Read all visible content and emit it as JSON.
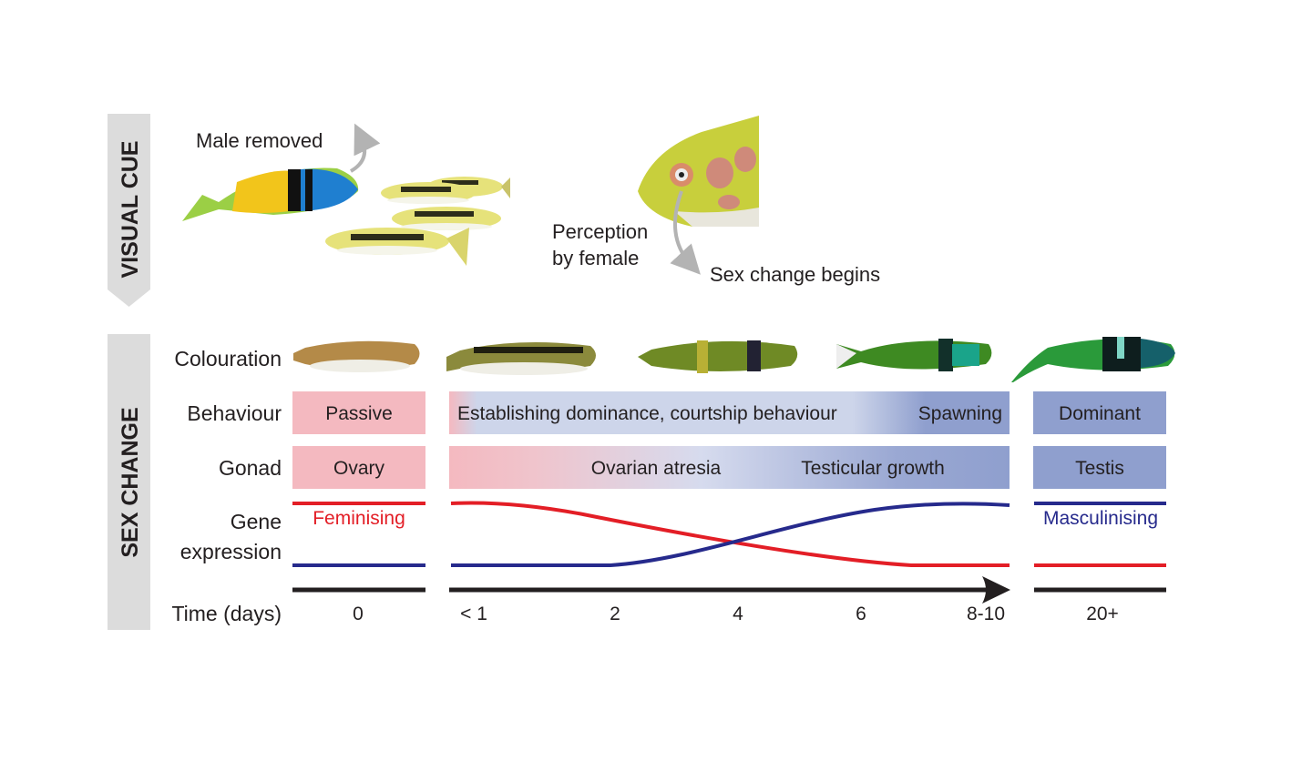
{
  "visual_cue": {
    "band_label": "VISUAL CUE",
    "male_removed": "Male removed",
    "perception_line1": "Perception",
    "perception_line2": "by female",
    "sex_change_begins": "Sex change begins"
  },
  "sex_change": {
    "band_label": "SEX CHANGE",
    "rows": {
      "colouration": "Colouration",
      "behaviour": "Behaviour",
      "gonad": "Gonad",
      "gene_line1": "Gene",
      "gene_line2": "expression",
      "time": "Time (days)"
    },
    "behaviour": {
      "start": "Passive",
      "middle": "Establishing dominance, courtship behaviour",
      "middle_end": "Spawning",
      "end": "Dominant"
    },
    "gonad": {
      "start": "Ovary",
      "middle_a": "Ovarian atresia",
      "middle_b": "Testicular growth",
      "end": "Testis"
    },
    "gene_expression": {
      "feminising": "Feminising",
      "masculinising": "Masculinising"
    },
    "time_ticks": [
      "0",
      "< 1",
      "2",
      "4",
      "6",
      "8-10",
      "20+"
    ]
  },
  "colors": {
    "female_pink": "#f4b9c0",
    "male_blue": "#8f9fce",
    "feminising_red": "#e31e26",
    "masculinising_blue": "#262a8c",
    "band_gray": "#dcdcdc"
  }
}
